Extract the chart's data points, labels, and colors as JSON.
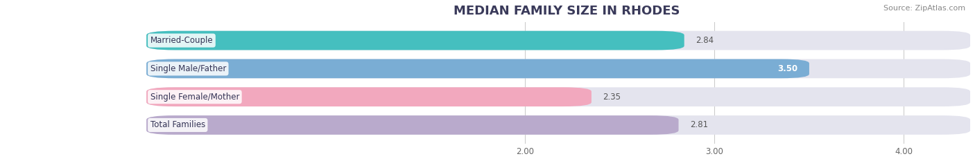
{
  "title": "MEDIAN FAMILY SIZE IN RHODES",
  "source": "Source: ZipAtlas.com",
  "categories": [
    "Married-Couple",
    "Single Male/Father",
    "Single Female/Mother",
    "Total Families"
  ],
  "values": [
    2.84,
    3.5,
    2.35,
    2.81
  ],
  "bar_colors": [
    "#45BFBF",
    "#7AADD4",
    "#F2A8BE",
    "#B9AACC"
  ],
  "background_bar_color": "#E4E4EE",
  "xmin": 0.0,
  "xlim_left": 1.62,
  "xlim_right": 4.35,
  "xticks": [
    2.0,
    3.0,
    4.0
  ],
  "xtick_labels": [
    "2.00",
    "3.00",
    "4.00"
  ],
  "bar_height": 0.68,
  "label_fontsize": 8.5,
  "value_fontsize": 8.5,
  "title_fontsize": 13,
  "source_fontsize": 8,
  "bg_color": "#FFFFFF",
  "title_color": "#3A3A5A",
  "source_color": "#888888",
  "grid_color": "#CCCCCC",
  "value_color_normal": "#555555",
  "value_color_white": "#FFFFFF"
}
